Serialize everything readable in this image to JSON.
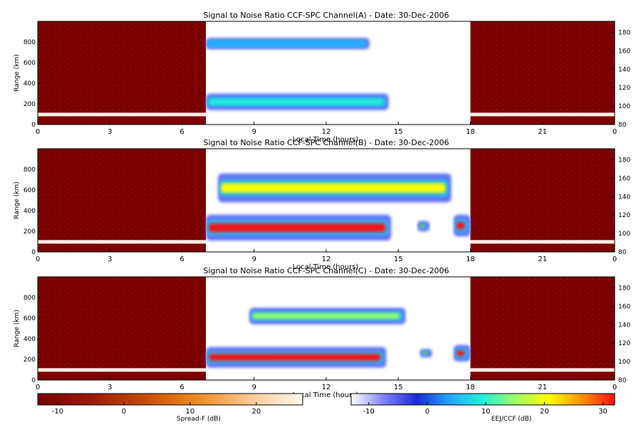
{
  "chart_data": [
    {
      "type": "heatmap",
      "title": "Signal to Noise Ratio CCF-SPC Channel(A) - Date: 30-Dec-2006",
      "xlabel": "Local Time (hours)",
      "ylabel": "Range (km)",
      "x_ticks": [
        "0",
        "3",
        "6",
        "9",
        "12",
        "15",
        "18",
        "21",
        "0"
      ],
      "y_ticks": [
        "0",
        "200",
        "400",
        "600",
        "800"
      ],
      "y2_ticks": [
        "80",
        "100",
        "120",
        "140",
        "160",
        "180"
      ],
      "xlim": [
        0,
        24
      ],
      "ylim": [
        0,
        1000
      ],
      "y2lim": [
        80,
        192
      ],
      "segments": [
        {
          "name": "Spread-F",
          "x": [
            0,
            7
          ]
        },
        {
          "name": "EEJ/CCF",
          "x": [
            7,
            18
          ]
        },
        {
          "name": "Spread-F",
          "x": [
            18,
            24
          ]
        }
      ],
      "features": [
        {
          "segment": "EEJ/CCF",
          "x": [
            7,
            13.8
          ],
          "y": [
            730,
            840
          ],
          "peak_db": 6
        },
        {
          "segment": "EEJ/CCF",
          "x": [
            7,
            14.6
          ],
          "y": [
            140,
            300
          ],
          "peak_db": 10
        },
        {
          "segment": "Spread-F",
          "x": [
            0,
            7
          ],
          "y": [
            80,
            115
          ],
          "peak_db": 26
        },
        {
          "segment": "Spread-F",
          "x": [
            18,
            24
          ],
          "y": [
            80,
            115
          ],
          "peak_db": 26
        }
      ]
    },
    {
      "type": "heatmap",
      "title": "Signal to Noise Ratio CCF-SPC Channel(B) - Date: 30-Dec-2006",
      "xlabel": "Local Time (hours)",
      "ylabel": "Range (km)",
      "x_ticks": [
        "0",
        "3",
        "6",
        "9",
        "12",
        "15",
        "18",
        "21",
        "0"
      ],
      "y_ticks": [
        "0",
        "200",
        "400",
        "600",
        "800"
      ],
      "y2_ticks": [
        "80",
        "100",
        "120",
        "140",
        "160",
        "180"
      ],
      "xlim": [
        0,
        24
      ],
      "ylim": [
        0,
        1000
      ],
      "y2lim": [
        80,
        192
      ],
      "segments": [
        {
          "name": "Spread-F",
          "x": [
            0,
            7
          ]
        },
        {
          "name": "EEJ/CCF",
          "x": [
            7,
            18
          ]
        },
        {
          "name": "Spread-F",
          "x": [
            18,
            24
          ]
        }
      ],
      "features": [
        {
          "segment": "EEJ/CCF",
          "x": [
            7.5,
            17.2
          ],
          "y": [
            480,
            760
          ],
          "peak_db": 18
        },
        {
          "segment": "EEJ/CCF",
          "x": [
            7,
            14.7
          ],
          "y": [
            110,
            360
          ],
          "peak_db": 32
        },
        {
          "segment": "EEJ/CCF",
          "x": [
            15.8,
            16.3
          ],
          "y": [
            200,
            300
          ],
          "peak_db": 28
        },
        {
          "segment": "EEJ/CCF",
          "x": [
            17.3,
            18
          ],
          "y": [
            150,
            360
          ],
          "peak_db": 32
        },
        {
          "segment": "Spread-F",
          "x": [
            0,
            7
          ],
          "y": [
            80,
            115
          ],
          "peak_db": 26
        },
        {
          "segment": "Spread-F",
          "x": [
            18,
            24
          ],
          "y": [
            80,
            115
          ],
          "peak_db": 26
        }
      ]
    },
    {
      "type": "heatmap",
      "title": "Signal to Noise Ratio CCF-SPC Channel(C) - Date: 30-Dec-2006",
      "xlabel": "Local Time (hours)",
      "ylabel": "Range (km)",
      "x_ticks": [
        "0",
        "3",
        "6",
        "9",
        "12",
        "15",
        "18",
        "21",
        "0"
      ],
      "y_ticks": [
        "0",
        "200",
        "400",
        "600",
        "800"
      ],
      "y2_ticks": [
        "80",
        "100",
        "120",
        "140",
        "160",
        "180"
      ],
      "xlim": [
        0,
        24
      ],
      "ylim": [
        0,
        1000
      ],
      "y2lim": [
        80,
        192
      ],
      "segments": [
        {
          "name": "Spread-F",
          "x": [
            0,
            7
          ]
        },
        {
          "name": "EEJ/CCF",
          "x": [
            7,
            18
          ]
        },
        {
          "name": "Spread-F",
          "x": [
            18,
            24
          ]
        }
      ],
      "features": [
        {
          "segment": "EEJ/CCF",
          "x": [
            8.8,
            15.3
          ],
          "y": [
            540,
            700
          ],
          "peak_db": 14
        },
        {
          "segment": "EEJ/CCF",
          "x": [
            7,
            14.5
          ],
          "y": [
            120,
            320
          ],
          "peak_db": 30
        },
        {
          "segment": "EEJ/CCF",
          "x": [
            15.9,
            16.4
          ],
          "y": [
            220,
            300
          ],
          "peak_db": 26
        },
        {
          "segment": "EEJ/CCF",
          "x": [
            17.3,
            18
          ],
          "y": [
            180,
            340
          ],
          "peak_db": 30
        },
        {
          "segment": "Spread-F",
          "x": [
            0,
            7
          ],
          "y": [
            80,
            115
          ],
          "peak_db": 26
        },
        {
          "segment": "Spread-F",
          "x": [
            18,
            24
          ],
          "y": [
            80,
            115
          ],
          "peak_db": 26
        }
      ]
    }
  ],
  "colorbars": [
    {
      "label": "Spread-F (dB)",
      "ticks": [
        "-10",
        "0",
        "10",
        "20"
      ],
      "range": [
        -13,
        27
      ],
      "colors": [
        "#7a0000",
        "#9c1a00",
        "#c84a00",
        "#ee8a20",
        "#ffc890",
        "#fffaf0"
      ]
    },
    {
      "label": "EEJ/CCF (dB)",
      "ticks": [
        "-10",
        "0",
        "10",
        "20",
        "30"
      ],
      "range": [
        -13,
        32
      ],
      "colors": [
        "#ffffff",
        "#8080ff",
        "#1a2ad8",
        "#20a8ff",
        "#20f0d8",
        "#a0ff60",
        "#ffff00",
        "#ff9000",
        "#ff1010"
      ]
    }
  ]
}
